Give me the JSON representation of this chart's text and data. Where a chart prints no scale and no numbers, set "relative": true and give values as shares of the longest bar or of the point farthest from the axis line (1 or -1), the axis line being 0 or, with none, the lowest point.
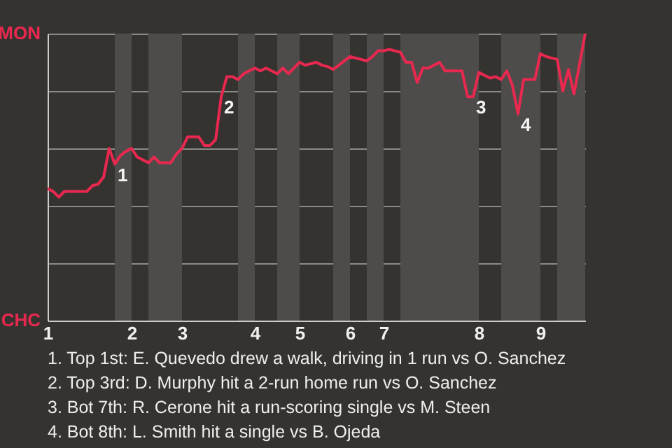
{
  "chart_data": {
    "type": "line",
    "categories": [
      "1",
      null,
      null,
      null,
      null,
      null,
      null,
      null,
      null,
      null,
      null,
      null,
      null,
      null,
      null,
      "2",
      null,
      null,
      null,
      null,
      null,
      null,
      null,
      null,
      "3",
      null,
      null,
      null,
      null,
      null,
      null,
      null,
      null,
      null,
      null,
      null,
      null,
      "4",
      null,
      null,
      null,
      null,
      null,
      null,
      null,
      "5",
      null,
      null,
      null,
      null,
      null,
      null,
      null,
      null,
      "6",
      null,
      null,
      null,
      null,
      null,
      "7",
      null,
      null,
      null,
      null,
      null,
      null,
      null,
      null,
      null,
      null,
      null,
      null,
      null,
      null,
      null,
      null,
      "8",
      null,
      null,
      null,
      null,
      null,
      null,
      null,
      null,
      null,
      null,
      "9",
      null,
      null,
      null,
      null,
      null,
      null,
      null,
      null
    ],
    "relative": true,
    "series": [
      {
        "color": "#e8284f",
        "values": [
          0.46,
          0.45,
          0.43,
          0.45,
          0.45,
          0.45,
          0.45,
          0.45,
          0.47,
          0.475,
          0.5,
          0.6,
          0.545,
          0.575,
          0.59,
          0.6,
          0.57,
          0.56,
          0.55,
          0.57,
          0.55,
          0.55,
          0.55,
          0.58,
          0.6,
          0.64,
          0.64,
          0.64,
          0.61,
          0.61,
          0.63,
          0.78,
          0.85,
          0.85,
          0.84,
          0.86,
          0.87,
          0.88,
          0.87,
          0.88,
          0.87,
          0.86,
          0.88,
          0.86,
          0.88,
          0.9,
          0.89,
          0.895,
          0.9,
          0.89,
          0.885,
          0.875,
          0.89,
          0.905,
          0.92,
          0.915,
          0.91,
          0.905,
          0.92,
          0.94,
          0.94,
          0.945,
          0.94,
          0.935,
          0.9,
          0.9,
          0.83,
          0.88,
          0.88,
          0.89,
          0.9,
          0.87,
          0.87,
          0.87,
          0.87,
          0.78,
          0.78,
          0.865,
          0.855,
          0.845,
          0.85,
          0.84,
          0.87,
          0.82,
          0.72,
          0.84,
          0.84,
          0.84,
          0.93,
          0.92,
          0.915,
          0.91,
          0.8,
          0.875,
          0.79,
          0.895,
          1.0
        ]
      }
    ],
    "grid": "y",
    "annotations": [
      "MON",
      "CHC",
      "1",
      "2",
      "3",
      "4",
      "1. Top 1st: E. Quevedo drew a walk, driving in 1 run vs O. Sanchez",
      "2. Top 3rd: D. Murphy hit a 2-run home run vs O. Sanchez",
      "3. Bot 7th: R. Cerone hit a run-scoring single vs M. Steen",
      "4. Bot 8th: L. Smith hit a single vs B. Ojeda"
    ]
  }
}
